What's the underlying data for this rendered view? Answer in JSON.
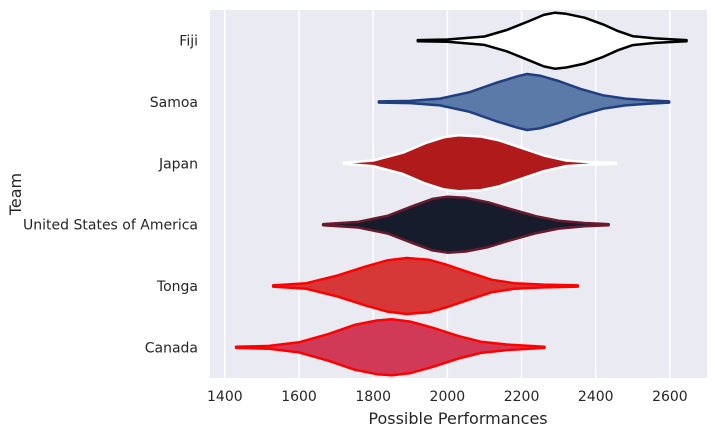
{
  "chart_data": {
    "type": "violin",
    "orientation": "horizontal",
    "xlabel": "Possible Performances",
    "ylabel": "Team",
    "xlim": [
      1360,
      2700
    ],
    "xticks": [
      1400,
      1600,
      1800,
      2000,
      2200,
      2400,
      2600
    ],
    "grid": true,
    "background": "#eaeaf2",
    "categories": [
      "Fiji",
      "Samoa",
      "Japan",
      "United States of America",
      "Tonga",
      "Canada"
    ],
    "series": [
      {
        "name": "Fiji",
        "fill": "#ffffff",
        "stroke": "#000000",
        "profile": [
          [
            1920,
            0.02
          ],
          [
            2000,
            0.04
          ],
          [
            2100,
            0.15
          ],
          [
            2160,
            0.38
          ],
          [
            2220,
            0.7
          ],
          [
            2260,
            0.92
          ],
          [
            2290,
            1.0
          ],
          [
            2320,
            0.96
          ],
          [
            2370,
            0.82
          ],
          [
            2420,
            0.58
          ],
          [
            2460,
            0.34
          ],
          [
            2500,
            0.16
          ],
          [
            2560,
            0.08
          ],
          [
            2645,
            0.02
          ]
        ]
      },
      {
        "name": "Samoa",
        "fill": "#5b7aa8",
        "stroke": "#1f3f80",
        "profile": [
          [
            1815,
            0.02
          ],
          [
            1900,
            0.04
          ],
          [
            1980,
            0.12
          ],
          [
            2060,
            0.35
          ],
          [
            2130,
            0.68
          ],
          [
            2190,
            0.92
          ],
          [
            2215,
            1.0
          ],
          [
            2250,
            0.94
          ],
          [
            2300,
            0.75
          ],
          [
            2360,
            0.46
          ],
          [
            2420,
            0.24
          ],
          [
            2480,
            0.12
          ],
          [
            2540,
            0.06
          ],
          [
            2598,
            0.02
          ]
        ]
      },
      {
        "name": "Japan",
        "fill": "#b11a1a",
        "stroke": "#ffffff",
        "profile": [
          [
            1720,
            0.02
          ],
          [
            1800,
            0.1
          ],
          [
            1880,
            0.38
          ],
          [
            1940,
            0.72
          ],
          [
            1990,
            0.93
          ],
          [
            2030,
            1.0
          ],
          [
            2090,
            0.96
          ],
          [
            2140,
            0.82
          ],
          [
            2200,
            0.55
          ],
          [
            2260,
            0.28
          ],
          [
            2320,
            0.1
          ],
          [
            2390,
            0.04
          ],
          [
            2455,
            0.02
          ]
        ]
      },
      {
        "name": "United States of America",
        "fill": "#171c2c",
        "stroke": "#6b1a2e",
        "profile": [
          [
            1665,
            0.02
          ],
          [
            1760,
            0.1
          ],
          [
            1840,
            0.32
          ],
          [
            1910,
            0.68
          ],
          [
            1960,
            0.92
          ],
          [
            2000,
            1.0
          ],
          [
            2050,
            0.96
          ],
          [
            2110,
            0.8
          ],
          [
            2170,
            0.56
          ],
          [
            2240,
            0.3
          ],
          [
            2300,
            0.14
          ],
          [
            2370,
            0.06
          ],
          [
            2435,
            0.02
          ]
        ]
      },
      {
        "name": "Tonga",
        "fill": "#d63737",
        "stroke": "#ff0000",
        "profile": [
          [
            1530,
            0.02
          ],
          [
            1620,
            0.1
          ],
          [
            1700,
            0.36
          ],
          [
            1780,
            0.7
          ],
          [
            1840,
            0.92
          ],
          [
            1890,
            1.0
          ],
          [
            1950,
            0.94
          ],
          [
            2000,
            0.75
          ],
          [
            2060,
            0.48
          ],
          [
            2120,
            0.22
          ],
          [
            2180,
            0.1
          ],
          [
            2260,
            0.05
          ],
          [
            2352,
            0.02
          ]
        ]
      },
      {
        "name": "Canada",
        "fill": "#d13a56",
        "stroke": "#ff0000",
        "profile": [
          [
            1430,
            0.02
          ],
          [
            1520,
            0.05
          ],
          [
            1600,
            0.18
          ],
          [
            1680,
            0.48
          ],
          [
            1750,
            0.8
          ],
          [
            1810,
            0.96
          ],
          [
            1850,
            1.0
          ],
          [
            1900,
            0.92
          ],
          [
            1960,
            0.7
          ],
          [
            2030,
            0.4
          ],
          [
            2090,
            0.2
          ],
          [
            2160,
            0.1
          ],
          [
            2262,
            0.02
          ]
        ]
      }
    ]
  }
}
